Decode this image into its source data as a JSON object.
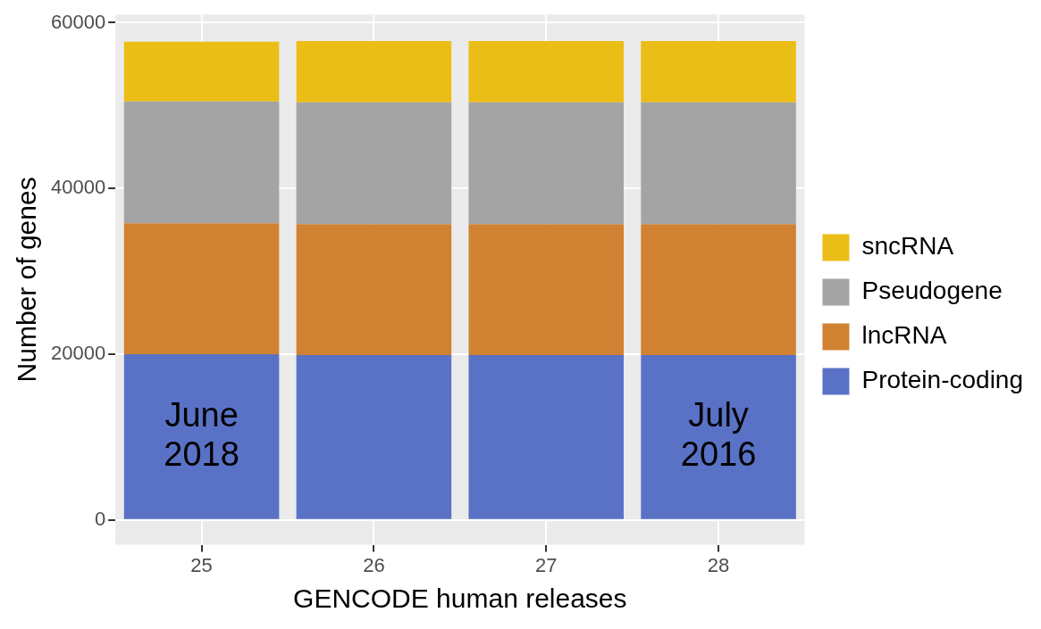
{
  "chart_data": {
    "type": "bar",
    "stacked": true,
    "xlabel": "GENCODE human releases",
    "ylabel": "Number of genes",
    "categories": [
      "25",
      "26",
      "27",
      "28"
    ],
    "series": [
      {
        "name": "Protein-coding",
        "color": "#5a72c6",
        "values": [
          20000,
          19900,
          19900,
          19900
        ]
      },
      {
        "name": "lncRNA",
        "color": "#d08232",
        "values": [
          15800,
          15800,
          15800,
          15800
        ]
      },
      {
        "name": "Pseudogene",
        "color": "#a4a4a4",
        "values": [
          14700,
          14700,
          14700,
          14700
        ]
      },
      {
        "name": "sncRNA",
        "color": "#ebbe17",
        "values": [
          7200,
          7400,
          7400,
          7400
        ]
      }
    ],
    "ylim": [
      -3000,
      61000
    ],
    "yticks": [
      0,
      20000,
      40000,
      60000
    ],
    "grid": true,
    "legend": "right",
    "annotations": [
      "June 2018",
      "July 2016"
    ]
  }
}
